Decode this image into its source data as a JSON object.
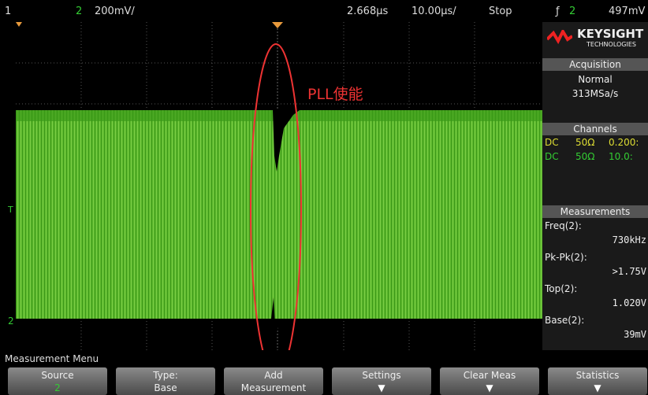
{
  "status_bar": {
    "channel_1": "1",
    "channel_2": "2",
    "scale": "200mV/",
    "delay": "2.668µs",
    "timebase": "10.00µs/",
    "run_state": "Stop",
    "trigger_channel": "2",
    "trigger_level": "497mV"
  },
  "screen": {
    "trigger_marker": "T",
    "channel_marker": "2",
    "annotation": "PLL使能"
  },
  "side_panel": {
    "brand": "KEYSIGHT",
    "brand_sub": "TECHNOLOGIES",
    "acquisition": {
      "title": "Acquisition",
      "mode": "Normal",
      "rate": "313MSa/s"
    },
    "channels": {
      "title": "Channels",
      "rows": [
        [
          "DC",
          "50Ω",
          "0.200:"
        ],
        [
          "DC",
          "50Ω",
          "10.0:"
        ]
      ]
    },
    "measurements": {
      "title": "Measurements",
      "items": [
        {
          "label": "Freq(2):",
          "value": "730kHz"
        },
        {
          "label": "Pk-Pk(2):",
          "value": ">1.75V"
        },
        {
          "label": "Top(2):",
          "value": "1.020V"
        },
        {
          "label": "Base(2):",
          "value": "39mV"
        }
      ]
    }
  },
  "menu": {
    "title": "Measurement Menu",
    "softkeys": [
      {
        "label": "Source",
        "value": "2"
      },
      {
        "label": "Type:",
        "value": "Base"
      },
      {
        "label": "Add",
        "value": "Measurement"
      },
      {
        "label": "Settings"
      },
      {
        "label": "Clear Meas"
      },
      {
        "label": "Statistics"
      }
    ]
  }
}
